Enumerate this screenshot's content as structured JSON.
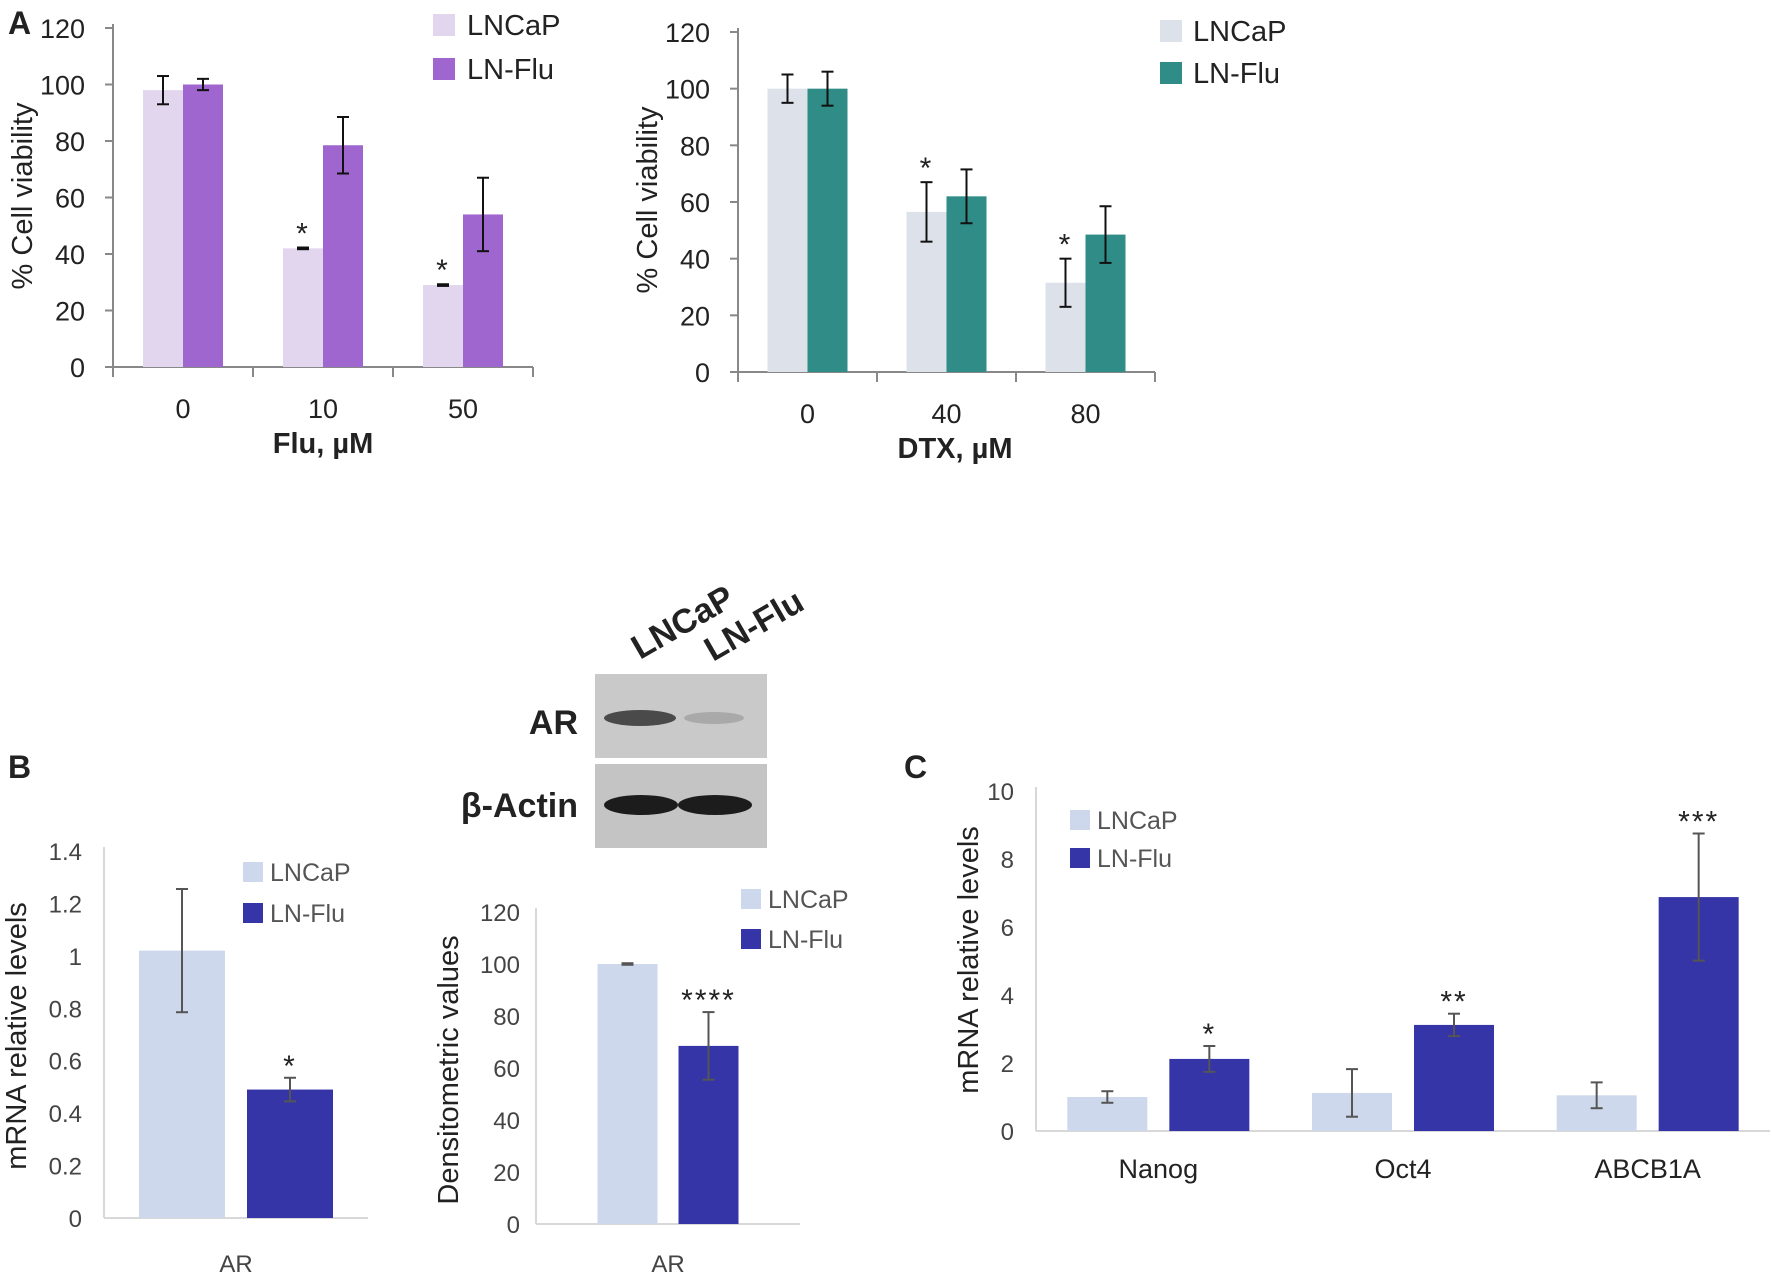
{
  "panels": {
    "a": "A",
    "b": "B",
    "c": "C"
  },
  "colors": {
    "lncap_a": "#e2d5ee",
    "lnflu_a": "#a066cf",
    "lncap_dtx": "#dde2ea",
    "lnflu_dtx": "#2f8c86",
    "lncap_b": "#cdd8ec",
    "lnflu_b": "#3535a8"
  },
  "western_blot": {
    "lanes": [
      "LNCaP",
      "LN-Flu"
    ],
    "rows": [
      "AR",
      "β-Actin"
    ]
  },
  "chart_data": [
    {
      "id": "flu",
      "type": "bar",
      "title": "",
      "xlabel": "Flu, µM",
      "ylabel": "% Cell viability",
      "categories": [
        "0",
        "10",
        "50"
      ],
      "ylim": [
        0,
        120
      ],
      "yticks": [
        "0",
        "20",
        "40",
        "60",
        "80",
        "100",
        "120"
      ],
      "legend": "top-center",
      "series": [
        {
          "name": "LNCaP",
          "color": "#e2d5ee",
          "values": [
            98,
            42,
            29
          ],
          "errors": [
            5,
            0.3,
            0.3
          ],
          "stars": [
            "",
            "*",
            "*"
          ]
        },
        {
          "name": "LN-Flu",
          "color": "#a066cf",
          "values": [
            100,
            78.5,
            54
          ],
          "errors": [
            2,
            10,
            13
          ],
          "stars": [
            "",
            "",
            ""
          ]
        }
      ]
    },
    {
      "id": "dtx",
      "type": "bar",
      "title": "",
      "xlabel": "DTX, µM",
      "ylabel": "% Cell viability",
      "categories": [
        "0",
        "40",
        "80"
      ],
      "ylim": [
        0,
        120
      ],
      "yticks": [
        "0",
        "20",
        "40",
        "60",
        "80",
        "100",
        "120"
      ],
      "legend": "top-right",
      "series": [
        {
          "name": "LNCaP",
          "color": "#dde2ea",
          "values": [
            100,
            56.5,
            31.5
          ],
          "errors": [
            5,
            10.5,
            8.5
          ],
          "stars": [
            "",
            "*",
            "*"
          ]
        },
        {
          "name": "LN-Flu",
          "color": "#2f8c86",
          "values": [
            100,
            62,
            48.5
          ],
          "errors": [
            6,
            9.5,
            10
          ],
          "stars": [
            "",
            "",
            ""
          ]
        }
      ]
    },
    {
      "id": "b_mrna",
      "type": "bar",
      "title": "",
      "xlabel": "",
      "ylabel": "mRNA relative levels",
      "categories": [
        "AR"
      ],
      "ylim": [
        0,
        1.4
      ],
      "yticks": [
        "0",
        "0.2",
        "0.4",
        "0.6",
        "0.8",
        "1",
        "1.2",
        "1.4"
      ],
      "legend": "top-right",
      "series": [
        {
          "name": "LNCaP",
          "color": "#cdd8ec",
          "values": [
            1.02
          ],
          "errors": [
            0.235
          ],
          "stars": [
            ""
          ]
        },
        {
          "name": "LN-Flu",
          "color": "#3535a8",
          "values": [
            0.49
          ],
          "errors": [
            0.045
          ],
          "stars": [
            "*"
          ]
        }
      ]
    },
    {
      "id": "b_dens",
      "type": "bar",
      "title": "",
      "xlabel": "",
      "ylabel": "Densitometric values",
      "categories": [
        "AR"
      ],
      "ylim": [
        0,
        120
      ],
      "yticks": [
        "0",
        "20",
        "40",
        "60",
        "80",
        "100",
        "120"
      ],
      "legend": "top-right",
      "series": [
        {
          "name": "LNCaP",
          "color": "#cdd8ec",
          "values": [
            100
          ],
          "errors": [
            0.3
          ],
          "stars": [
            ""
          ]
        },
        {
          "name": "LN-Flu",
          "color": "#3535a8",
          "values": [
            68.5
          ],
          "errors": [
            13
          ],
          "stars": [
            "****"
          ]
        }
      ]
    },
    {
      "id": "c_mrna",
      "type": "bar",
      "title": "",
      "xlabel": "",
      "ylabel": "mRNA relative levels",
      "categories": [
        "Nanog",
        "Oct4",
        "ABCB1A"
      ],
      "ylim": [
        0,
        10
      ],
      "yticks": [
        "0",
        "2",
        "4",
        "6",
        "8",
        "10"
      ],
      "legend": "top-left",
      "series": [
        {
          "name": "LNCaP",
          "color": "#cdd8ec",
          "values": [
            1.0,
            1.12,
            1.05
          ],
          "errors": [
            0.17,
            0.7,
            0.38
          ],
          "stars": [
            "",
            "",
            ""
          ]
        },
        {
          "name": "LN-Flu",
          "color": "#3535a8",
          "values": [
            2.12,
            3.12,
            6.88
          ],
          "errors": [
            0.38,
            0.33,
            1.87
          ],
          "stars": [
            "*",
            "**",
            "***"
          ]
        }
      ]
    }
  ]
}
